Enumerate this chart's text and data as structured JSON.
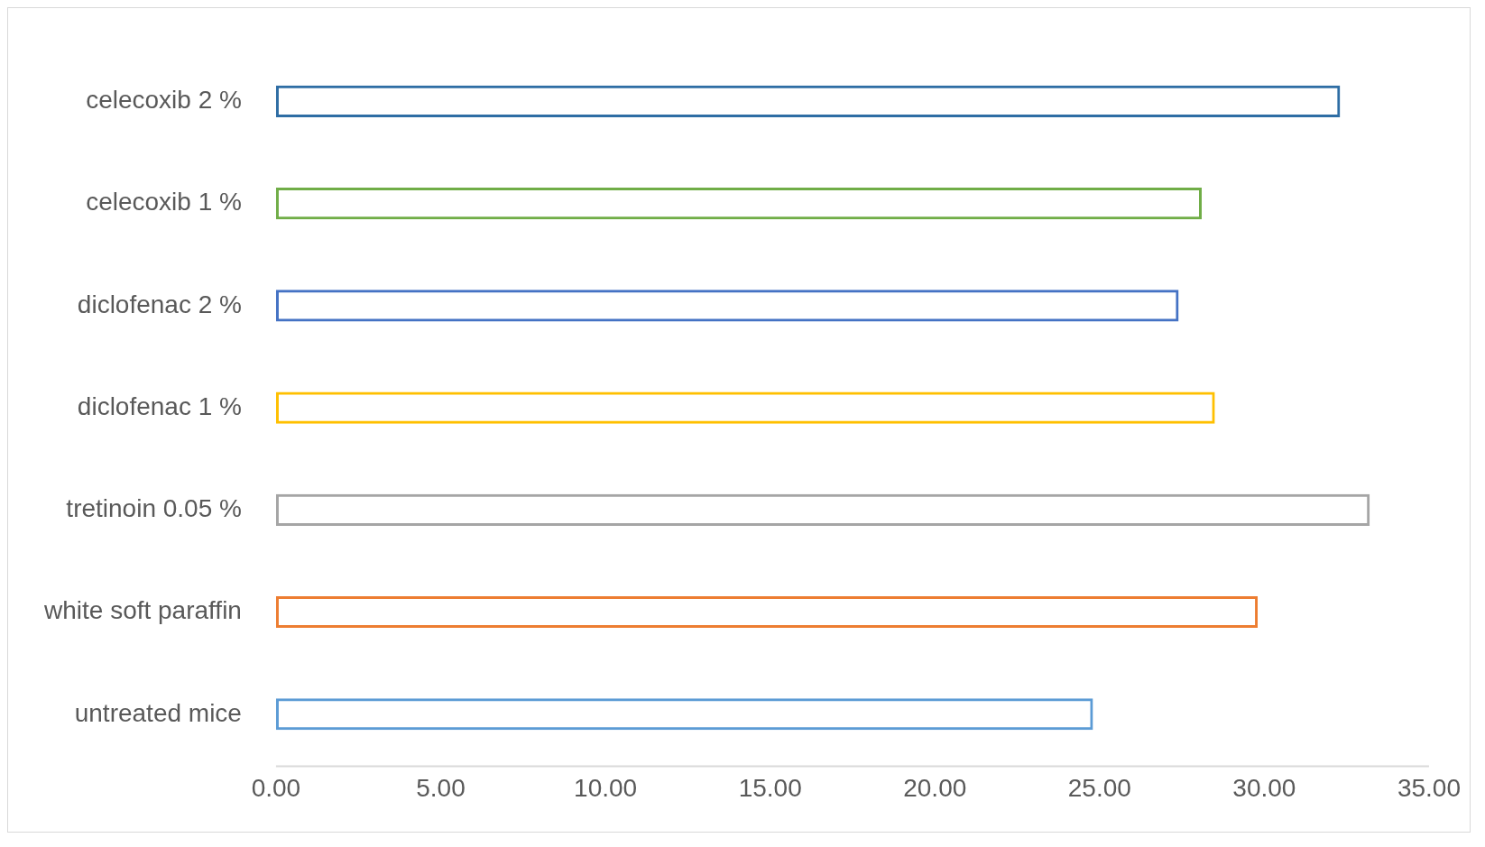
{
  "chart_data": {
    "type": "bar",
    "orientation": "horizontal",
    "categories": [
      "celecoxib 2 %",
      "celecoxib 1 %",
      "diclofenac 2 %",
      "diclofenac 1 %",
      "tretinoin 0.05 %",
      "white soft paraffin",
      "untreated mice"
    ],
    "values": [
      32.3,
      28.1,
      27.4,
      28.5,
      33.2,
      29.8,
      24.8
    ],
    "colors": [
      "#2e6da4",
      "#70ad47",
      "#4472c4",
      "#ffc000",
      "#a5a5a5",
      "#ed7d31",
      "#5b9bd5"
    ],
    "xlim": [
      0,
      35
    ],
    "xticks": [
      {
        "value": 0,
        "label": "0.00"
      },
      {
        "value": 5,
        "label": "5.00"
      },
      {
        "value": 10,
        "label": "10.00"
      },
      {
        "value": 15,
        "label": "15.00"
      },
      {
        "value": 20,
        "label": "20.00"
      },
      {
        "value": 25,
        "label": "25.00"
      },
      {
        "value": 30,
        "label": "30.00"
      },
      {
        "value": 35,
        "label": "35.00"
      }
    ],
    "grid": false,
    "legend": false
  }
}
